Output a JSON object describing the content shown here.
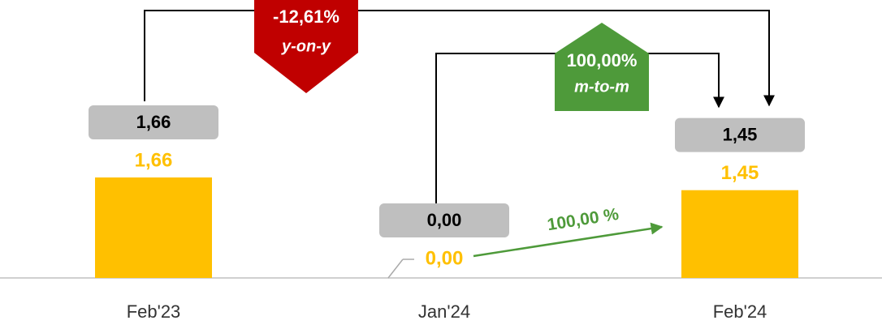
{
  "chart_data": {
    "type": "bar",
    "categories": [
      "Feb'23",
      "Jan'24",
      "Feb'24"
    ],
    "values": [
      1.66,
      0.0,
      1.45
    ],
    "value_labels": [
      "1,66",
      "0,00",
      "1,45"
    ],
    "color": "#ffc000",
    "annotations": [
      {
        "text": "-12,61%",
        "subtext": "y-on-y",
        "color": "#c00000"
      },
      {
        "text": "100,00%",
        "subtext": "m-to-m",
        "color": "#4e9a3a"
      },
      {
        "text": "100,00 %",
        "color": "#4e9a3a"
      }
    ]
  }
}
